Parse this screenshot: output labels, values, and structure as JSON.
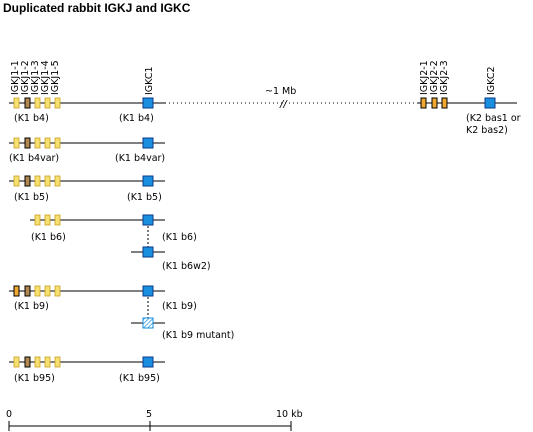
{
  "title": "Duplicated rabbit IGKJ and IGKC",
  "gene_labels": {
    "igkj1": [
      "IGKJ1-1",
      "IGKJ1-2",
      "IGKJ1-3",
      "IGKJ1-4",
      "IGKJ1-5"
    ],
    "igkc1": "IGKC1",
    "igkj2": [
      "IGKJ2-1",
      "IGKJ2-2",
      "IGKJ2-3"
    ],
    "igkc2": "IGKC2"
  },
  "gap_label": "~1 Mb",
  "gap_break": "//",
  "haplotypes": [
    {
      "j_label": "(K1 b4)",
      "c_label": "(K1 b4)"
    },
    {
      "j_label": "(K1 b4var)",
      "c_label": "(K1 b4var)"
    },
    {
      "j_label": "(K1 b5)",
      "c_label": "(K1 b5)"
    },
    {
      "j_label": "(K1 b6)",
      "c_label": "(K1 b6)",
      "dup_label": "(K1 b6w2)"
    },
    {
      "j_label": "(K1 b9)",
      "c_label": "(K1 b9)",
      "dup_label": "(K1 b9 mutant)"
    },
    {
      "j_label": "(K1 b95)",
      "c_label": "(K1 b95)"
    }
  ],
  "k2_label": [
    "(K2 bas1 or",
    "K2 bas2)"
  ],
  "scale": {
    "ticks": [
      "0",
      "5",
      "10 kb"
    ]
  },
  "colors": {
    "j_functional": "#f5e070",
    "j_orange": "#f0a830",
    "j_dark": "#b08850",
    "c_blue": "#1a8fe0",
    "c_border": "#0a3a8a"
  }
}
